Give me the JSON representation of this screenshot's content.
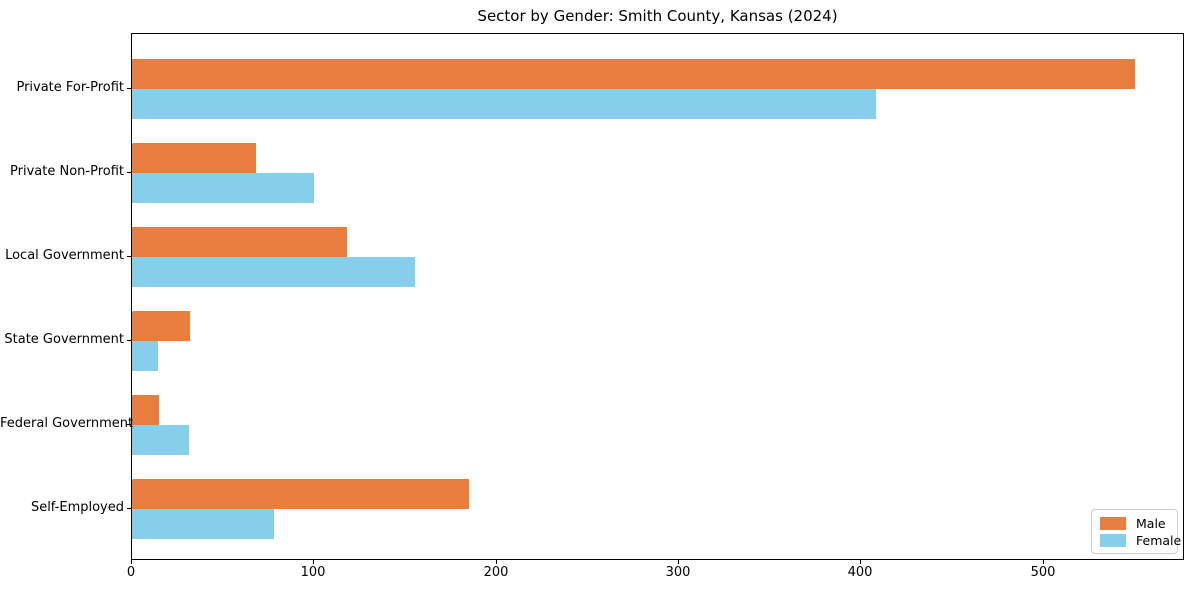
{
  "chart_data": {
    "type": "bar",
    "orientation": "horizontal",
    "title": "Sector by Gender: Smith County, Kansas (2024)",
    "categories": [
      "Private For-Profit",
      "Private Non-Profit",
      "Local Government",
      "State Government",
      "Federal Government",
      "Self-Employed"
    ],
    "series": [
      {
        "name": "Male",
        "color": "#E87D3E",
        "values": [
          550,
          68,
          118,
          32,
          15,
          185
        ]
      },
      {
        "name": "Female",
        "color": "#87CEEB",
        "values": [
          408,
          100,
          155,
          14,
          31,
          78
        ]
      }
    ],
    "xlabel": "",
    "ylabel": "",
    "xlim": [
      0,
      577.5
    ],
    "xticks": [
      0,
      100,
      200,
      300,
      400,
      500
    ],
    "grid": false,
    "legend_position": "lower-right",
    "axis_color": "#000000",
    "background_color": "#ffffff"
  }
}
